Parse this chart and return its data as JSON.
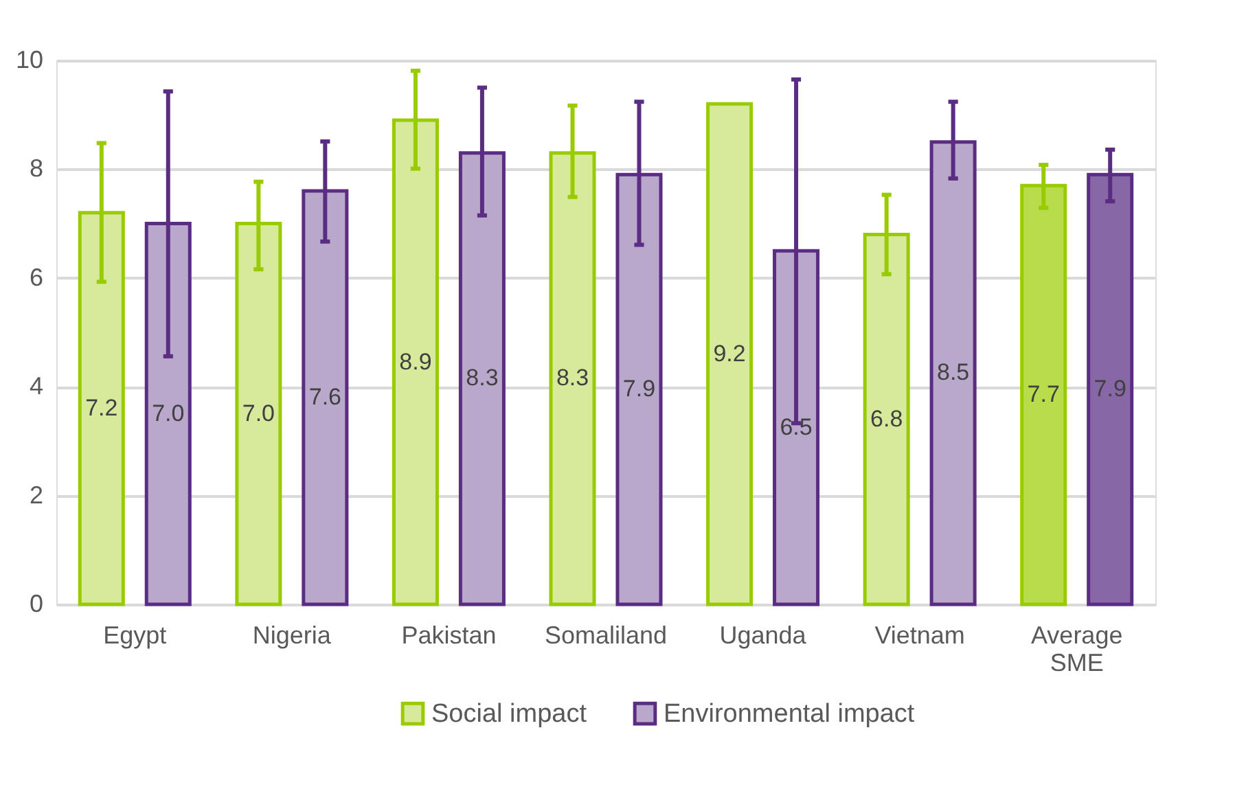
{
  "chart_data": {
    "type": "bar",
    "categories": [
      "Egypt",
      "Nigeria",
      "Pakistan",
      "Somaliland",
      "Uganda",
      "Vietnam",
      "Average SME"
    ],
    "series": [
      {
        "name": "Social impact",
        "color": "#99cc00",
        "colors": [
          "#d7e99a",
          "#d7e99a",
          "#d7e99a",
          "#d7e99a",
          "#d7e99a",
          "#d7e99a",
          "#b8dc4c"
        ],
        "values": [
          7.2,
          7.0,
          8.9,
          8.3,
          9.2,
          6.8,
          7.7
        ],
        "value_labels": [
          "7.2",
          "7.0",
          "8.9",
          "8.3",
          "9.2",
          "6.8",
          "7.7"
        ],
        "errors": [
          [
            5.93,
            8.48
          ],
          [
            6.16,
            7.77
          ],
          [
            8.01,
            9.81
          ],
          [
            7.49,
            9.17
          ],
          null,
          [
            6.07,
            7.53
          ],
          [
            7.29,
            8.08
          ]
        ]
      },
      {
        "name": "Environmental impact",
        "color": "#5a2d82",
        "colors": [
          "#b9a8cb",
          "#b9a8cb",
          "#b9a8cb",
          "#b9a8cb",
          "#b9a8cb",
          "#b9a8cb",
          "#8767a5"
        ],
        "values": [
          7.0,
          7.6,
          8.3,
          7.9,
          6.5,
          8.5,
          7.9
        ],
        "value_labels": [
          "7.0",
          "7.6",
          "8.3",
          "7.9",
          "6.5",
          "8.5",
          "7.9"
        ],
        "errors": [
          [
            4.56,
            9.43
          ],
          [
            6.67,
            8.51
          ],
          [
            7.15,
            9.5
          ],
          [
            6.61,
            9.24
          ],
          [
            3.33,
            9.65
          ],
          [
            7.83,
            9.24
          ],
          [
            7.41,
            8.36
          ]
        ]
      }
    ],
    "ylim": [
      0,
      10
    ],
    "yticks": [
      0,
      2,
      4,
      6,
      8,
      10
    ],
    "grid": "y",
    "legend": "bottom"
  }
}
